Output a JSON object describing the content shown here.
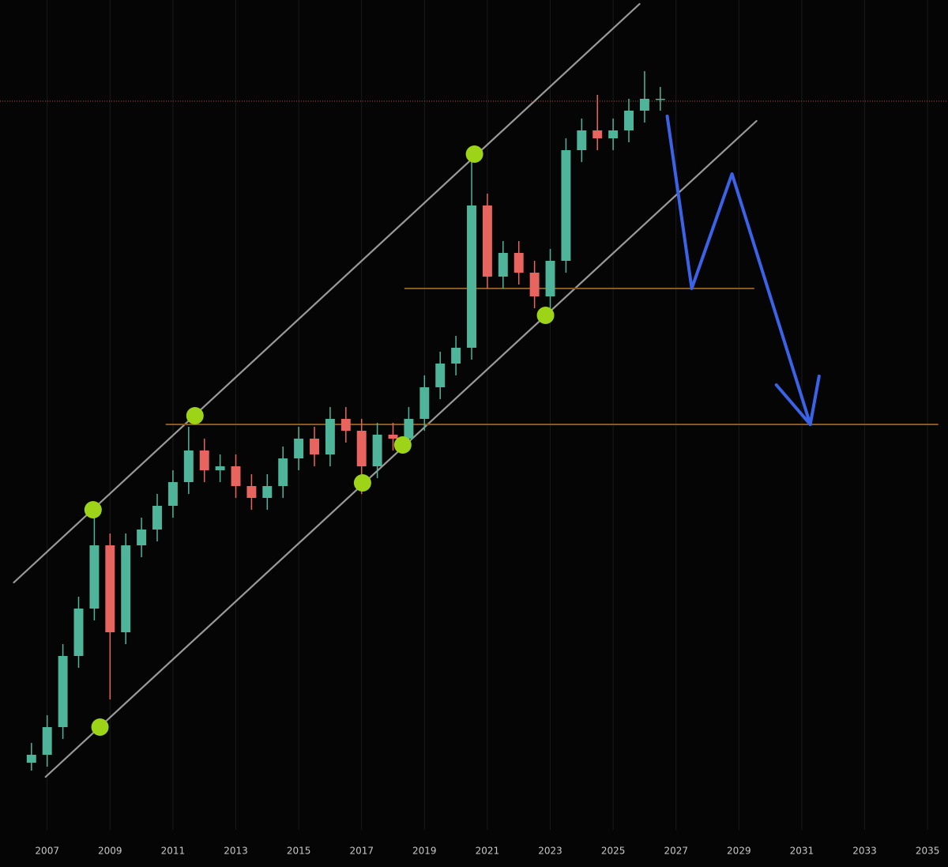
{
  "chart_data": {
    "type": "candlestick",
    "x": [
      2006.5,
      2007.0,
      2007.5,
      2008.0,
      2008.5,
      2009.0,
      2009.5,
      2010.0,
      2010.5,
      2011.0,
      2011.5,
      2012.0,
      2012.5,
      2013.0,
      2013.5,
      2014.0,
      2014.5,
      2015.0,
      2015.5,
      2016.0,
      2016.5,
      2017.0,
      2017.5,
      2018.0,
      2018.5,
      2019.0,
      2019.5,
      2020.0,
      2020.5,
      2021.0,
      2021.5,
      2022.0,
      2022.5,
      2023.0,
      2023.5,
      2024.0,
      2024.5,
      2025.0,
      2025.5,
      2026.0,
      2026.5
    ],
    "open": [
      85,
      95,
      130,
      220,
      280,
      360,
      250,
      360,
      380,
      410,
      440,
      480,
      455,
      460,
      435,
      420,
      435,
      470,
      495,
      475,
      520,
      505,
      460,
      500,
      495,
      520,
      560,
      590,
      610,
      790,
      700,
      730,
      705,
      675,
      720,
      860,
      885,
      875,
      885,
      910,
      925
    ],
    "high": [
      110,
      145,
      235,
      295,
      405,
      375,
      375,
      395,
      425,
      455,
      510,
      495,
      475,
      475,
      450,
      450,
      485,
      510,
      510,
      535,
      535,
      520,
      515,
      515,
      535,
      575,
      605,
      625,
      860,
      805,
      745,
      745,
      720,
      735,
      875,
      900,
      930,
      900,
      925,
      960,
      940
    ],
    "low": [
      75,
      80,
      115,
      205,
      265,
      165,
      235,
      345,
      365,
      395,
      425,
      440,
      440,
      420,
      405,
      405,
      420,
      455,
      460,
      460,
      490,
      425,
      445,
      480,
      480,
      505,
      545,
      575,
      595,
      685,
      685,
      690,
      660,
      660,
      705,
      845,
      860,
      860,
      870,
      895,
      910
    ],
    "close": [
      95,
      130,
      220,
      280,
      360,
      250,
      360,
      380,
      410,
      440,
      480,
      455,
      460,
      435,
      420,
      435,
      470,
      495,
      475,
      520,
      505,
      460,
      500,
      495,
      520,
      560,
      590,
      610,
      790,
      700,
      730,
      705,
      675,
      720,
      860,
      885,
      875,
      885,
      910,
      925,
      925
    ],
    "up_color": "#4fb59a",
    "down_color": "#e8655f",
    "xlim": [
      2005.5,
      2035.65
    ],
    "ylim": [
      0,
      1050
    ],
    "xticks": [
      2007,
      2009,
      2011,
      2013,
      2015,
      2017,
      2019,
      2021,
      2023,
      2025,
      2027,
      2029,
      2031,
      2033,
      2035
    ],
    "grid": true,
    "trend_lines": [
      {
        "x": [
          2005.94,
          2025.84
        ],
        "y": [
          313,
          1045
        ],
        "color": "#9a9a9a"
      },
      {
        "x": [
          2006.95,
          2029.56
        ],
        "y": [
          67,
          897
        ],
        "color": "#9a9a9a"
      }
    ],
    "levels": [
      {
        "x": [
          2018.36,
          2029.49
        ],
        "y": 685,
        "color": "#8a5a1c"
      },
      {
        "x": [
          2010.77,
          2035.34
        ],
        "y": 513,
        "color": "#8a5a1c"
      }
    ],
    "price_line": {
      "y": 922,
      "color": "#c0503a"
    },
    "markers": {
      "x": [
        2008.46,
        2008.68,
        2011.7,
        2017.03,
        2018.31,
        2020.59,
        2022.85
      ],
      "y": [
        405,
        130,
        524,
        439,
        487,
        855,
        651
      ],
      "color": "#9ed418"
    },
    "projection": {
      "x": [
        2026.72,
        2027.5,
        2028.78,
        2031.27
      ],
      "y": [
        903,
        685,
        830,
        513
      ],
      "color": "#3a63e8"
    },
    "arrow_head": {
      "x": [
        2030.19,
        2031.27,
        2031.55
      ],
      "y": [
        563,
        513,
        574
      ],
      "color": "#3a63e8"
    }
  }
}
